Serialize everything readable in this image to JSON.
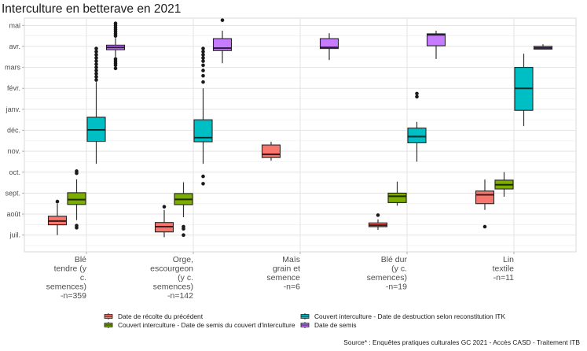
{
  "chart_data": {
    "type": "boxplot",
    "title": "Interculture en betterave en 2021",
    "xlabel": "",
    "ylabel": "",
    "y_ticks": [
      "juil.",
      "août",
      "sept.",
      "oct.",
      "nov.",
      "déc.",
      "janv.",
      "févr.",
      "mars",
      "avr.",
      "mai"
    ],
    "y_value_note": "values are month index: 0=juil. ... 10=mai",
    "ylim": [
      -0.8,
      10.35
    ],
    "grid": true,
    "legend_position": "bottom",
    "categories": [
      {
        "lines": [
          "Blé",
          "tendre (y",
          "c.",
          "semences)",
          "-n=359"
        ]
      },
      {
        "lines": [
          "Orge,",
          "escourgeon",
          "(y c.",
          "semences)",
          "-n=142"
        ]
      },
      {
        "lines": [
          "Maïs",
          "grain et",
          "semence",
          "-n=6"
        ]
      },
      {
        "lines": [
          "Blé dur",
          "(y c.",
          "semences)",
          "-n=19"
        ]
      },
      {
        "lines": [
          "Lin",
          "textile",
          "-n=11"
        ]
      }
    ],
    "series": [
      {
        "name": "Date de récolte du précédent",
        "color": "#f8766d",
        "boxes": [
          {
            "category": 0,
            "low": 0.0,
            "q1": 0.49,
            "median": 0.67,
            "q3": 0.9,
            "high": 1.5,
            "outliers": [
              1.6
            ]
          },
          {
            "category": 1,
            "low": -0.1,
            "q1": 0.15,
            "median": 0.4,
            "q3": 0.6,
            "high": 1.2,
            "outliers": [
              1.35
            ]
          },
          {
            "category": 2,
            "low": 3.55,
            "q1": 3.7,
            "median": 3.85,
            "q3": 4.3,
            "high": 4.45,
            "outliers": []
          },
          {
            "category": 3,
            "low": 0.25,
            "q1": 0.4,
            "median": 0.47,
            "q3": 0.58,
            "high": 0.75,
            "outliers": [
              0.95
            ]
          },
          {
            "category": 4,
            "low": 1.2,
            "q1": 1.5,
            "median": 1.92,
            "q3": 2.1,
            "high": 2.65,
            "outliers": [
              0.4
            ]
          }
        ]
      },
      {
        "name": "Couvert interculture - Date de semis du couvert d'interculture",
        "color": "#7cae00",
        "boxes": [
          {
            "category": 0,
            "low": 0.71,
            "q1": 1.46,
            "median": 1.69,
            "q3": 2.02,
            "high": 2.66,
            "outliers": [
              2.95,
              3.05,
              0.35,
              0.45
            ]
          },
          {
            "category": 1,
            "low": 0.85,
            "q1": 1.45,
            "median": 1.7,
            "q3": 1.98,
            "high": 2.52,
            "outliers": [
              0.4,
              0.3,
              0.0
            ]
          },
          {
            "category": 3,
            "low": 1.4,
            "q1": 1.55,
            "median": 1.85,
            "q3": 2.0,
            "high": 2.55,
            "outliers": []
          },
          {
            "category": 4,
            "low": 1.83,
            "q1": 2.2,
            "median": 2.4,
            "q3": 2.62,
            "high": 3.0,
            "outliers": []
          }
        ]
      },
      {
        "name": "Couvert interculture - Date de destruction selon reconstitution ITK",
        "color": "#00bfc4",
        "boxes": [
          {
            "category": 0,
            "low": 3.4,
            "q1": 4.47,
            "median": 5.02,
            "q3": 5.62,
            "high": 7.3,
            "outliers": [
              7.4,
              7.55,
              7.7,
              7.85,
              8.0,
              8.15,
              8.3,
              8.45,
              8.6,
              8.75,
              8.9
            ]
          },
          {
            "category": 1,
            "low": 3.4,
            "q1": 4.45,
            "median": 4.65,
            "q3": 5.5,
            "high": 7.0,
            "outliers": [
              7.3,
              7.6,
              7.85,
              8.1,
              8.3,
              8.45,
              8.6,
              8.75,
              8.9,
              2.8,
              2.45
            ]
          },
          {
            "category": 3,
            "low": 3.5,
            "q1": 4.4,
            "median": 4.7,
            "q3": 5.1,
            "high": 5.4,
            "outliers": [
              6.6,
              6.75
            ]
          },
          {
            "category": 4,
            "low": 5.2,
            "q1": 5.95,
            "median": 7.0,
            "q3": 8.0,
            "high": 8.65,
            "outliers": []
          }
        ]
      },
      {
        "name": "Date de semis",
        "color": "#c77cff",
        "boxes": [
          {
            "category": 0,
            "low": 8.5,
            "q1": 8.84,
            "median": 8.95,
            "q3": 9.06,
            "high": 9.4,
            "outliers": [
              9.5,
              9.6,
              9.7,
              9.8,
              9.9,
              10.0,
              10.1,
              8.4,
              8.3,
              8.2,
              8.1,
              7.95
            ]
          },
          {
            "category": 1,
            "low": 8.2,
            "q1": 8.8,
            "median": 8.92,
            "q3": 9.37,
            "high": 9.75,
            "outliers": [
              10.25
            ]
          },
          {
            "category": 2,
            "low": 8.35,
            "q1": 8.9,
            "median": 8.95,
            "q3": 9.37,
            "high": 9.63,
            "outliers": []
          },
          {
            "category": 3,
            "low": 8.4,
            "q1": 9.03,
            "median": 9.55,
            "q3": 9.6,
            "high": 9.75,
            "outliers": []
          },
          {
            "category": 4,
            "low": 8.85,
            "q1": 8.87,
            "median": 8.93,
            "q3": 9.0,
            "high": 9.1,
            "outliers": []
          }
        ]
      }
    ],
    "source": "Source* : Enquêtes pratiques culturales GC 2021 - Accès CASD - Traitement ITB"
  }
}
